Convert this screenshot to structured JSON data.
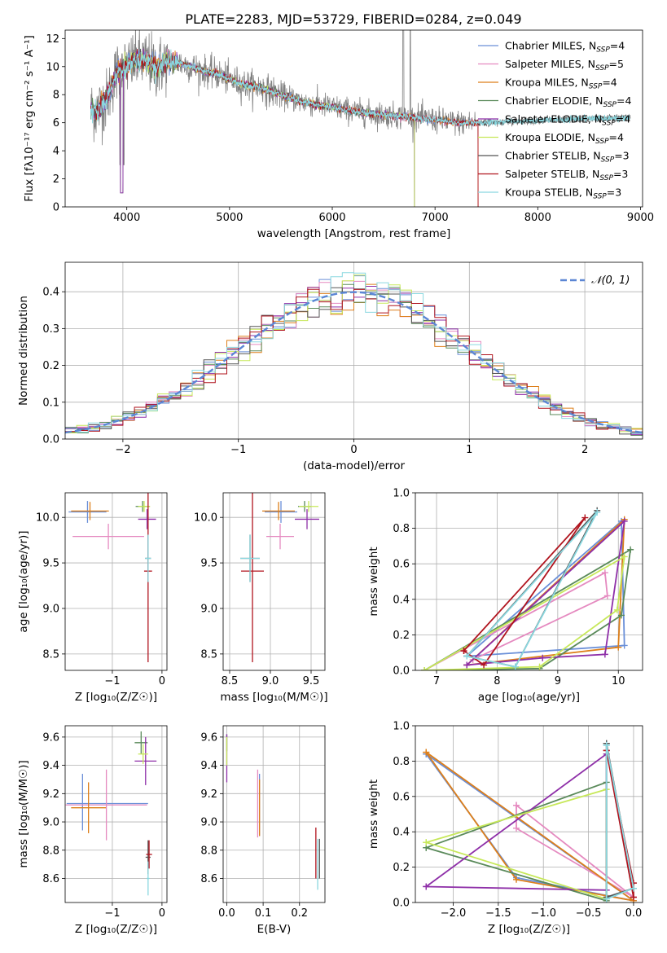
{
  "figure_title": "PLATE=2283, MJD=53729, FIBERID=0284, z=0.049",
  "colors": {
    "Chabrier MILES": "#6a8fd8",
    "Salpeter MILES": "#e58ac0",
    "Kroupa MILES": "#dd7f1a",
    "Chabrier ELODIE": "#5a8a5a",
    "Salpeter ELODIE": "#8e2fa8",
    "Kroupa ELODIE": "#c7e85a",
    "Chabrier STELIB": "#555555",
    "Salpeter STELIB": "#b0141e",
    "Kroupa STELIB": "#8ad8e0",
    "data": "#808080",
    "normal_curve": "#5b86d4"
  },
  "chart_data": [
    {
      "id": "spectrum",
      "type": "line",
      "title": "PLATE=2283, MJD=53729, FIBERID=0284, z=0.049",
      "xlabel": "wavelength [Angstrom, rest frame]",
      "ylabel": "Flux [fλ10⁻¹⁷ erg cm⁻² s⁻¹ A⁻¹]",
      "xlim": [
        3400,
        9020
      ],
      "ylim": [
        0,
        12.6
      ],
      "xticks": [
        "4000",
        "5000",
        "6000",
        "7000",
        "8000",
        "9000"
      ],
      "yticks": [
        "0",
        "2",
        "4",
        "6",
        "8",
        "10",
        "12"
      ],
      "grid": false,
      "legend_position": "top-right",
      "legend": [
        {
          "name": "Chabrier MILES",
          "sub": "SSP",
          "n": "4"
        },
        {
          "name": "Salpeter MILES",
          "sub": "SSP",
          "n": "5"
        },
        {
          "name": "Kroupa MILES",
          "sub": "SSP",
          "n": "4"
        },
        {
          "name": "Chabrier ELODIE",
          "sub": "SSP",
          "n": "4"
        },
        {
          "name": "Salpeter ELODIE",
          "sub": "SSP",
          "n": "4"
        },
        {
          "name": "Kroupa ELODIE",
          "sub": "SSP",
          "n": "4"
        },
        {
          "name": "Chabrier STELIB",
          "sub": "SSP",
          "n": "3"
        },
        {
          "name": "Salpeter STELIB",
          "sub": "SSP",
          "n": "3"
        },
        {
          "name": "Kroupa STELIB",
          "sub": "SSP",
          "n": "3"
        }
      ],
      "model_continuum": {
        "x": [
          3650,
          3700,
          3800,
          3900,
          4000,
          4100,
          4200,
          4300,
          4400,
          4500,
          4700,
          4900,
          5100,
          5300,
          5500,
          5700,
          6000,
          6300,
          6600,
          6900,
          7200,
          7400
        ],
        "y": [
          7.0,
          6.8,
          7.6,
          9.6,
          10.0,
          10.5,
          10.3,
          9.9,
          10.4,
          10.3,
          9.8,
          9.4,
          8.8,
          8.5,
          8.0,
          7.5,
          7.1,
          6.7,
          6.5,
          6.3,
          6.0,
          6.0
        ]
      },
      "model_ranges": {
        "Chabrier MILES": [
          3650,
          7420
        ],
        "Salpeter MILES": [
          3650,
          7420
        ],
        "Kroupa MILES": [
          3650,
          7420
        ],
        "Chabrier ELODIE": [
          3650,
          6800
        ],
        "Salpeter ELODIE": [
          3650,
          6800
        ],
        "Kroupa ELODIE": [
          3900,
          6800
        ],
        "Chabrier STELIB": [
          3650,
          8900
        ],
        "Salpeter STELIB": [
          3650,
          7420
        ],
        "Kroupa STELIB": [
          3650,
          8900
        ]
      }
    },
    {
      "id": "residuals",
      "type": "line",
      "xlabel": "(data-model)/error",
      "ylabel": "Normed distribution",
      "xlim": [
        -2.5,
        2.5
      ],
      "ylim": [
        0,
        0.48
      ],
      "xticks": [
        "−2",
        "−1",
        "0",
        "1",
        "2"
      ],
      "yticks": [
        "0.0",
        "0.1",
        "0.2",
        "0.3",
        "0.4"
      ],
      "grid": true,
      "legend_position": "top-right",
      "legend": [
        {
          "name": "𝒩(0, 1)"
        }
      ],
      "bin_width": 0.1
    },
    {
      "id": "age-vs-Z",
      "type": "scatter",
      "xlabel": "Z [log₁₀(Z/Z☉)]",
      "ylabel": "age  [log₁₀(age/yr)]",
      "xlim": [
        -1.95,
        0.1
      ],
      "ylim": [
        8.32,
        10.27
      ],
      "xticks": [
        "−1",
        "0"
      ],
      "yticks": [
        "8.5",
        "9.0",
        "9.5",
        "10.0"
      ],
      "grid": true,
      "points": [
        {
          "series": "Chabrier MILES",
          "x": -1.5,
          "y": 10.06,
          "xerr": 0.38,
          "yerr": 0.12
        },
        {
          "series": "Salpeter MILES",
          "x": -1.08,
          "y": 9.79,
          "xerr": 0.72,
          "yerr": 0.14
        },
        {
          "series": "Kroupa MILES",
          "x": -1.45,
          "y": 10.07,
          "xerr": 0.38,
          "yerr": 0.1
        },
        {
          "series": "Chabrier ELODIE",
          "x": -0.39,
          "y": 10.12,
          "xerr": 0.14,
          "yerr": 0.06
        },
        {
          "series": "Salpeter ELODIE",
          "x": -0.3,
          "y": 9.98,
          "xerr": 0.18,
          "yerr": 0.11
        },
        {
          "series": "Kroupa ELODIE",
          "x": -0.36,
          "y": 10.12,
          "xerr": 0.12,
          "yerr": 0.06
        },
        {
          "series": "Chabrier STELIB",
          "x": -0.28,
          "y": 9.55,
          "xerr": 0.06,
          "yerr": 0.26
        },
        {
          "series": "Salpeter STELIB",
          "x": -0.28,
          "y": 9.41,
          "xerr": 0.08,
          "yerr": 1.0
        },
        {
          "series": "Kroupa STELIB",
          "x": -0.28,
          "y": 9.55,
          "xerr": 0.06,
          "yerr": 0.26
        }
      ]
    },
    {
      "id": "age-vs-mass",
      "type": "scatter",
      "xlabel": "mass [log₁₀(M/M☉)]",
      "ylabel": "",
      "xlim": [
        8.42,
        9.67
      ],
      "ylim": [
        8.32,
        10.27
      ],
      "xticks": [
        "8.5",
        "9.0",
        "9.5"
      ],
      "yticks": [
        "8.5",
        "9.0",
        "9.5",
        "10.0"
      ],
      "grid": true,
      "points": [
        {
          "series": "Chabrier MILES",
          "x": 9.13,
          "y": 10.06,
          "xerr": 0.2,
          "yerr": 0.12
        },
        {
          "series": "Salpeter MILES",
          "x": 9.12,
          "y": 9.79,
          "xerr": 0.17,
          "yerr": 0.14
        },
        {
          "series": "Kroupa MILES",
          "x": 9.1,
          "y": 10.07,
          "xerr": 0.2,
          "yerr": 0.1
        },
        {
          "series": "Chabrier ELODIE",
          "x": 9.42,
          "y": 10.12,
          "xerr": 0.08,
          "yerr": 0.06
        },
        {
          "series": "Salpeter ELODIE",
          "x": 9.45,
          "y": 9.98,
          "xerr": 0.15,
          "yerr": 0.11
        },
        {
          "series": "Kroupa ELODIE",
          "x": 9.47,
          "y": 10.12,
          "xerr": 0.12,
          "yerr": 0.06
        },
        {
          "series": "Chabrier STELIB",
          "x": 8.75,
          "y": 9.55,
          "xerr": 0.12,
          "yerr": 0.26
        },
        {
          "series": "Salpeter STELIB",
          "x": 8.78,
          "y": 9.41,
          "xerr": 0.14,
          "yerr": 1.0
        },
        {
          "series": "Kroupa STELIB",
          "x": 8.75,
          "y": 9.55,
          "xerr": 0.12,
          "yerr": 0.26
        }
      ]
    },
    {
      "id": "mass-weight-vs-age",
      "type": "line",
      "xlabel": "age  [log₁₀(age/yr)]",
      "ylabel": "mass weight",
      "xlim": [
        6.65,
        10.4
      ],
      "ylim": [
        0,
        1.0
      ],
      "xticks": [
        "7",
        "8",
        "9",
        "10"
      ],
      "yticks": [
        "0.0",
        "0.2",
        "0.4",
        "0.6",
        "0.8",
        "1.0"
      ],
      "grid": true,
      "series": [
        {
          "name": "Chabrier MILES",
          "x": [
            7.5,
            10.05,
            10.1,
            7.5
          ],
          "y": [
            0.08,
            0.84,
            0.14,
            0.08
          ]
        },
        {
          "name": "Salpeter MILES",
          "x": [
            6.8,
            9.78,
            9.82,
            7.6
          ],
          "y": [
            0.0,
            0.55,
            0.42,
            0.06
          ]
        },
        {
          "name": "Kroupa MILES",
          "x": [
            7.5,
            10.1,
            10.0,
            7.5
          ],
          "y": [
            0.03,
            0.85,
            0.13,
            0.03
          ]
        },
        {
          "name": "Chabrier ELODIE",
          "x": [
            6.8,
            10.2,
            10.05,
            8.7,
            6.8
          ],
          "y": [
            0.0,
            0.68,
            0.31,
            0.01,
            0.0
          ]
        },
        {
          "name": "Salpeter ELODIE",
          "x": [
            7.5,
            10.1,
            9.78,
            8.75,
            7.5
          ],
          "y": [
            0.03,
            0.84,
            0.09,
            0.07,
            0.03
          ]
        },
        {
          "name": "Kroupa ELODIE",
          "x": [
            6.8,
            10.1,
            9.98,
            8.7,
            6.8
          ],
          "y": [
            0.0,
            0.64,
            0.34,
            0.02,
            0.0
          ]
        },
        {
          "name": "Chabrier STELIB",
          "x": [
            7.5,
            9.65,
            8.3,
            7.5
          ],
          "y": [
            0.08,
            0.9,
            0.02,
            0.08
          ]
        },
        {
          "name": "Salpeter STELIB",
          "x": [
            7.45,
            9.45,
            7.78,
            7.45
          ],
          "y": [
            0.11,
            0.86,
            0.03,
            0.11
          ]
        },
        {
          "name": "Kroupa STELIB",
          "x": [
            7.5,
            9.65,
            8.3,
            7.5
          ],
          "y": [
            0.08,
            0.89,
            0.02,
            0.08
          ]
        }
      ]
    },
    {
      "id": "mass-vs-Z",
      "type": "scatter",
      "xlabel": "Z [log₁₀(Z/Z☉)]",
      "ylabel": "mass [log₁₀(M/M☉)]",
      "xlim": [
        -1.95,
        0.1
      ],
      "ylim": [
        8.43,
        9.68
      ],
      "xticks": [
        "−1",
        "0"
      ],
      "yticks": [
        "8.6",
        "8.8",
        "9.0",
        "9.2",
        "9.4",
        "9.6"
      ],
      "grid": true,
      "points": [
        {
          "series": "Chabrier MILES",
          "x": -1.1,
          "y": 9.13,
          "xerr": 0.82,
          "yerr": 0.0
        },
        {
          "series": "Chabrier MILES",
          "x": -1.6,
          "y": 9.14,
          "xerr": 0.0,
          "yerr": 0.2
        },
        {
          "series": "Salpeter MILES",
          "x": -1.12,
          "y": 9.12,
          "xerr": 0.82,
          "yerr": 0.25
        },
        {
          "series": "Kroupa MILES",
          "x": -1.48,
          "y": 9.1,
          "xerr": 0.35,
          "yerr": 0.18
        },
        {
          "series": "Chabrier ELODIE",
          "x": -0.42,
          "y": 9.56,
          "xerr": 0.13,
          "yerr": 0.08
        },
        {
          "series": "Salpeter ELODIE",
          "x": -0.33,
          "y": 9.43,
          "xerr": 0.22,
          "yerr": 0.17
        },
        {
          "series": "Kroupa ELODIE",
          "x": -0.38,
          "y": 9.48,
          "xerr": 0.1,
          "yerr": 0.07
        },
        {
          "series": "Chabrier STELIB",
          "x": -0.28,
          "y": 8.75,
          "xerr": 0.05,
          "yerr": 0.12
        },
        {
          "series": "Salpeter STELIB",
          "x": -0.26,
          "y": 8.77,
          "xerr": 0.06,
          "yerr": 0.1
        },
        {
          "series": "Kroupa STELIB",
          "x": -0.28,
          "y": 8.6,
          "xerr": 0.03,
          "yerr": 0.12
        }
      ]
    },
    {
      "id": "mass-vs-ebv",
      "type": "scatter",
      "xlabel": "E(B-V)",
      "ylabel": "",
      "xlim": [
        -0.01,
        0.27
      ],
      "ylim": [
        8.43,
        9.68
      ],
      "xticks": [
        "0.0",
        "0.1",
        "0.2"
      ],
      "yticks": [
        "8.6",
        "8.8",
        "9.0",
        "9.2",
        "9.4",
        "9.6"
      ],
      "grid": true,
      "points": [
        {
          "series": "Chabrier MILES",
          "x": 0.09,
          "y": 9.12,
          "xerr": 0.0,
          "yerr": 0.22
        },
        {
          "series": "Salpeter MILES",
          "x": 0.085,
          "y": 9.13,
          "xerr": 0.0,
          "yerr": 0.24
        },
        {
          "series": "Kroupa MILES",
          "x": 0.09,
          "y": 9.1,
          "xerr": 0.0,
          "yerr": 0.2
        },
        {
          "series": "Chabrier ELODIE",
          "x": 0.0,
          "y": 9.56,
          "xerr": 0.0,
          "yerr": 0.06
        },
        {
          "series": "Salpeter ELODIE",
          "x": 0.0,
          "y": 9.45,
          "xerr": 0.0,
          "yerr": 0.17
        },
        {
          "series": "Kroupa ELODIE",
          "x": 0.0,
          "y": 9.5,
          "xerr": 0.0,
          "yerr": 0.1
        },
        {
          "series": "Chabrier STELIB",
          "x": 0.255,
          "y": 8.74,
          "xerr": 0.0,
          "yerr": 0.14
        },
        {
          "series": "Salpeter STELIB",
          "x": 0.245,
          "y": 8.78,
          "xerr": 0.0,
          "yerr": 0.18
        },
        {
          "series": "Kroupa STELIB",
          "x": 0.25,
          "y": 8.7,
          "xerr": 0.0,
          "yerr": 0.18
        }
      ]
    },
    {
      "id": "mass-weight-vs-Z",
      "type": "line",
      "xlabel": "Z [log₁₀(Z/Z☉)]",
      "ylabel": "mass weight",
      "xlim": [
        -2.42,
        0.1
      ],
      "ylim": [
        0,
        1.0
      ],
      "xticks": [
        "−2.0",
        "−1.5",
        "−1.0",
        "−0.5",
        "0.0"
      ],
      "yticks": [
        "0.0",
        "0.2",
        "0.4",
        "0.6",
        "0.8",
        "1.0"
      ],
      "grid": true,
      "series": [
        {
          "name": "Chabrier MILES",
          "x": [
            -2.3,
            -1.3,
            0.0,
            -2.3
          ],
          "y": [
            0.84,
            0.14,
            0.01,
            0.84
          ]
        },
        {
          "name": "Salpeter MILES",
          "x": [
            -1.3,
            -1.3,
            0.0,
            -1.3
          ],
          "y": [
            0.55,
            0.42,
            0.03,
            0.55
          ]
        },
        {
          "name": "Kroupa MILES",
          "x": [
            -2.3,
            -1.3,
            0.0,
            -2.3
          ],
          "y": [
            0.85,
            0.13,
            0.01,
            0.85
          ]
        },
        {
          "name": "Chabrier ELODIE",
          "x": [
            -2.3,
            -0.3,
            -0.3,
            -2.3
          ],
          "y": [
            0.31,
            0.68,
            0.01,
            0.31
          ]
        },
        {
          "name": "Salpeter ELODIE",
          "x": [
            -2.3,
            -0.3,
            -0.3,
            -2.3
          ],
          "y": [
            0.09,
            0.84,
            0.07,
            0.09
          ]
        },
        {
          "name": "Kroupa ELODIE",
          "x": [
            -2.3,
            -0.3,
            -0.3,
            -2.3
          ],
          "y": [
            0.34,
            0.64,
            0.02,
            0.34
          ]
        },
        {
          "name": "Chabrier STELIB",
          "x": [
            -0.3,
            -0.3,
            0.0,
            -0.3
          ],
          "y": [
            0.9,
            0.03,
            0.08,
            0.9
          ]
        },
        {
          "name": "Salpeter STELIB",
          "x": [
            -0.3,
            0.0,
            0.0,
            -0.3
          ],
          "y": [
            0.86,
            0.11,
            0.03,
            0.86
          ]
        },
        {
          "name": "Kroupa STELIB",
          "x": [
            -0.3,
            -0.3,
            0.0,
            -0.3
          ],
          "y": [
            0.89,
            0.02,
            0.08,
            0.89
          ]
        }
      ]
    }
  ]
}
